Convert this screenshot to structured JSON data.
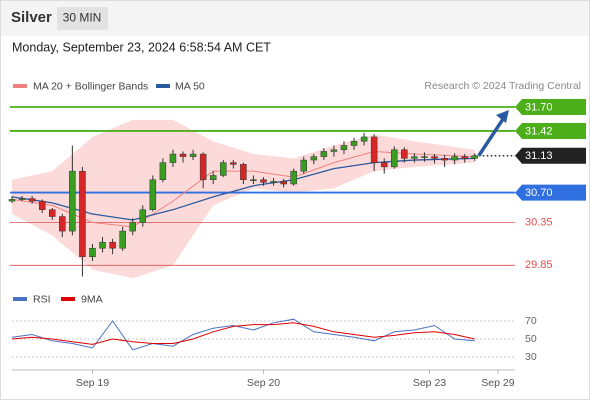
{
  "chart_data": [
    {
      "type": "candlestick",
      "title": "Silver",
      "interval": "30 MIN",
      "timestamp": "Monday, September 23, 2024 6:58:54 AM CET",
      "credit": "Research © 2024 Trading Central",
      "up_color": "#3a9d23",
      "down_color": "#d62728",
      "xlim": [
        0,
        50
      ],
      "ylim": [
        29.62,
        31.84
      ],
      "candles": [
        [
          30.6,
          30.66,
          30.58,
          30.62
        ],
        [
          30.62,
          30.66,
          30.6,
          30.63
        ],
        [
          30.63,
          30.66,
          30.57,
          30.6
        ],
        [
          30.6,
          30.62,
          30.46,
          30.5
        ],
        [
          30.5,
          30.52,
          30.38,
          30.42
        ],
        [
          30.42,
          30.45,
          30.18,
          30.25
        ],
        [
          30.25,
          31.25,
          30.2,
          30.95
        ],
        [
          30.95,
          31.0,
          29.72,
          29.95
        ],
        [
          29.95,
          30.1,
          29.9,
          30.05
        ],
        [
          30.05,
          30.18,
          30.0,
          30.12
        ],
        [
          30.12,
          30.16,
          29.98,
          30.05
        ],
        [
          30.05,
          30.3,
          30.02,
          30.25
        ],
        [
          30.25,
          30.4,
          30.2,
          30.35
        ],
        [
          30.35,
          30.55,
          30.3,
          30.5
        ],
        [
          30.5,
          30.9,
          30.48,
          30.85
        ],
        [
          30.85,
          31.1,
          30.82,
          31.05
        ],
        [
          31.05,
          31.2,
          31.0,
          31.15
        ],
        [
          31.15,
          31.18,
          31.05,
          31.12
        ],
        [
          31.12,
          31.2,
          31.08,
          31.15
        ],
        [
          31.15,
          31.17,
          30.75,
          30.85
        ],
        [
          30.85,
          30.95,
          30.8,
          30.9
        ],
        [
          30.9,
          31.08,
          30.88,
          31.05
        ],
        [
          31.05,
          31.08,
          30.98,
          31.03
        ],
        [
          31.03,
          31.05,
          30.8,
          30.85
        ],
        [
          30.85,
          30.9,
          30.8,
          30.85
        ],
        [
          30.85,
          30.88,
          30.78,
          30.82
        ],
        [
          30.82,
          30.87,
          30.78,
          30.83
        ],
        [
          30.83,
          30.86,
          30.76,
          30.8
        ],
        [
          30.8,
          30.98,
          30.78,
          30.95
        ],
        [
          30.95,
          31.12,
          30.92,
          31.08
        ],
        [
          31.08,
          31.15,
          31.03,
          31.12
        ],
        [
          31.12,
          31.22,
          31.08,
          31.18
        ],
        [
          31.18,
          31.25,
          31.12,
          31.2
        ],
        [
          31.2,
          31.3,
          31.15,
          31.25
        ],
        [
          31.25,
          31.34,
          31.2,
          31.3
        ],
        [
          31.3,
          31.4,
          31.25,
          31.35
        ],
        [
          31.35,
          31.38,
          30.95,
          31.05
        ],
        [
          31.05,
          31.1,
          30.92,
          31.0
        ],
        [
          31.0,
          31.24,
          30.98,
          31.2
        ],
        [
          31.2,
          31.23,
          31.05,
          31.1
        ],
        [
          31.1,
          31.16,
          31.05,
          31.12
        ],
        [
          31.12,
          31.17,
          31.06,
          31.12
        ],
        [
          31.12,
          31.15,
          31.04,
          31.1
        ],
        [
          31.1,
          31.14,
          31.0,
          31.08
        ],
        [
          31.08,
          31.16,
          31.03,
          31.12
        ],
        [
          31.12,
          31.15,
          31.05,
          31.1
        ],
        [
          31.1,
          31.16,
          31.07,
          31.13
        ]
      ],
      "ma20": {
        "name": "MA 20 + Bollinger Bands",
        "color": "#f08080",
        "band_color": "#fcdada",
        "x": [
          0,
          4,
          8,
          12,
          16,
          20,
          24,
          28,
          32,
          36,
          40,
          46
        ],
        "values": [
          30.62,
          30.55,
          30.35,
          30.3,
          30.6,
          30.95,
          30.95,
          30.88,
          31.05,
          31.18,
          31.15,
          31.12
        ],
        "upper": [
          30.85,
          30.95,
          31.35,
          31.55,
          31.55,
          31.3,
          31.15,
          31.1,
          31.25,
          31.38,
          31.3,
          31.2
        ],
        "lower": [
          30.45,
          30.2,
          29.8,
          29.7,
          29.85,
          30.55,
          30.75,
          30.7,
          30.75,
          30.95,
          31.0,
          31.05
        ]
      },
      "ma50": {
        "name": "MA 50",
        "color": "#2a5aa0",
        "x": [
          0,
          4,
          8,
          12,
          16,
          20,
          24,
          28,
          32,
          36,
          40,
          46
        ],
        "values": [
          30.65,
          30.58,
          30.45,
          30.38,
          30.5,
          30.65,
          30.78,
          30.85,
          30.98,
          31.05,
          31.08,
          31.1
        ]
      },
      "levels": [
        {
          "value": 31.7,
          "label": "31.70",
          "color": "#4caf1a",
          "style": "box"
        },
        {
          "value": 31.42,
          "color": "#4caf1a",
          "style": "box"
        },
        {
          "value": 31.13,
          "color": "#222222",
          "style": "dotted"
        },
        {
          "value": 30.7,
          "label": "30.70",
          "color": "#2f6fe0",
          "style": "box"
        },
        {
          "value": 30.35,
          "color": "#e05050",
          "style": "text"
        },
        {
          "value": 29.85,
          "color": "#e05050",
          "style": "text"
        }
      ]
    },
    {
      "type": "line",
      "xlim": [
        0,
        50
      ],
      "ylim": [
        10,
        90
      ],
      "yticks": [
        70,
        50,
        30
      ],
      "xticks": [
        {
          "value": 8,
          "label": "Sep 19"
        },
        {
          "value": 25,
          "label": "Sep 20"
        },
        {
          "value": 41.5,
          "label": "Sep 23"
        },
        {
          "value": 48.3,
          "label": "Sep 29"
        }
      ],
      "series": [
        {
          "name": "RSI",
          "color": "#4a72c4",
          "x": [
            0,
            2,
            4,
            6,
            8,
            10,
            12,
            14,
            16,
            18,
            20,
            22,
            24,
            26,
            28,
            30,
            32,
            34,
            36,
            38,
            40,
            42,
            44,
            46
          ],
          "values": [
            52,
            55,
            48,
            45,
            40,
            70,
            38,
            45,
            42,
            55,
            62,
            65,
            60,
            68,
            72,
            58,
            55,
            52,
            48,
            58,
            60,
            65,
            50,
            48
          ]
        },
        {
          "name": "9MA",
          "color": "#e00000",
          "x": [
            0,
            2,
            4,
            6,
            8,
            10,
            12,
            14,
            16,
            18,
            20,
            22,
            24,
            26,
            28,
            30,
            32,
            34,
            36,
            38,
            40,
            42,
            44,
            46
          ],
          "values": [
            50,
            52,
            50,
            47,
            44,
            50,
            47,
            45,
            45,
            50,
            58,
            64,
            66,
            66,
            68,
            64,
            58,
            55,
            52,
            54,
            57,
            58,
            55,
            50
          ]
        }
      ]
    }
  ]
}
